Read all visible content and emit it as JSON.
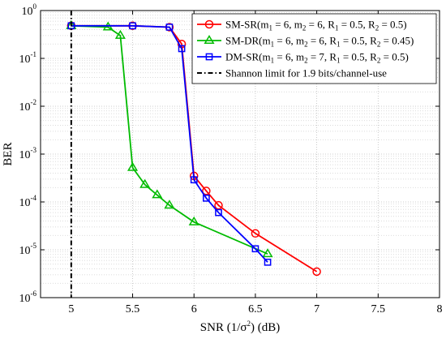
{
  "chart_data": {
    "type": "line",
    "xlabel": "SNR (1/σ²) (dB)",
    "xlabel_parts": {
      "pre": "SNR (1/σ",
      "sup": "2",
      "post": ") (dB)"
    },
    "ylabel": "BER",
    "xlim": [
      4.75,
      8
    ],
    "ylim_exponents": [
      -6,
      0
    ],
    "yscale": "log",
    "grid": true,
    "grid_style": "dotted, with minor log gridlines",
    "legend_position": "top-right",
    "x_ticks": [
      "5",
      "5.5",
      "6",
      "6.5",
      "7",
      "7.5",
      "8"
    ],
    "y_ticks": [
      {
        "base": "10",
        "exp": "0"
      },
      {
        "base": "10",
        "exp": "-1"
      },
      {
        "base": "10",
        "exp": "-2"
      },
      {
        "base": "10",
        "exp": "-3"
      },
      {
        "base": "10",
        "exp": "-4"
      },
      {
        "base": "10",
        "exp": "-5"
      },
      {
        "base": "10",
        "exp": "-6"
      }
    ],
    "series": [
      {
        "name": "SM-SR(m1 = 6, m2 = 6, R1 = 0.5, R2 = 0.5)",
        "color": "#ff0000",
        "marker": "circle",
        "x": [
          5.0,
          5.5,
          5.8,
          5.9,
          6.0,
          6.1,
          6.2,
          6.5,
          7.0
        ],
        "y": [
          0.48,
          0.48,
          0.45,
          0.2,
          0.00035,
          0.00017,
          8.5e-05,
          2.2e-05,
          3.5e-06
        ]
      },
      {
        "name": "SM-DR(m1 = 6, m2 = 6, R1 = 0.5, R2 = 0.45)",
        "color": "#00bb00",
        "marker": "triangle",
        "x": [
          5.0,
          5.3,
          5.4,
          5.5,
          5.6,
          5.7,
          5.8,
          6.0,
          6.6
        ],
        "y": [
          0.48,
          0.45,
          0.3,
          0.00052,
          0.00023,
          0.00014,
          8.5e-05,
          3.8e-05,
          8.2e-06
        ]
      },
      {
        "name": "DM-SR(m1 = 6, m2 = 7, R1 = 0.5, R2 = 0.5)",
        "color": "#0000ff",
        "marker": "square",
        "x": [
          5.0,
          5.5,
          5.8,
          5.9,
          6.0,
          6.1,
          6.2,
          6.5,
          6.6
        ],
        "y": [
          0.48,
          0.48,
          0.45,
          0.16,
          0.00029,
          0.00012,
          6e-05,
          1.05e-05,
          5.5e-06
        ]
      },
      {
        "name": "Shannon limit for 1.9 bits/channel-use",
        "color": "#000000",
        "marker": "none",
        "linestyle": "dash-dot",
        "x": [
          5.0,
          5.0
        ],
        "y": [
          1,
          1e-06
        ]
      }
    ],
    "legend": [
      {
        "parts": [
          [
            "t",
            "SM-SR(m"
          ],
          [
            "sub",
            "1"
          ],
          [
            "t",
            " = 6, m"
          ],
          [
            "sub",
            "2"
          ],
          [
            "t",
            " = 6, R"
          ],
          [
            "sub",
            "1"
          ],
          [
            "t",
            " = 0.5, R"
          ],
          [
            "sub",
            "2"
          ],
          [
            "t",
            " = 0.5)"
          ]
        ]
      },
      {
        "parts": [
          [
            "t",
            "SM-DR(m"
          ],
          [
            "sub",
            "1"
          ],
          [
            "t",
            " = 6, m"
          ],
          [
            "sub",
            "2"
          ],
          [
            "t",
            " = 6, R"
          ],
          [
            "sub",
            "1"
          ],
          [
            "t",
            " = 0.5, R"
          ],
          [
            "sub",
            "2"
          ],
          [
            "t",
            " = 0.45)"
          ]
        ]
      },
      {
        "parts": [
          [
            "t",
            "DM-SR(m"
          ],
          [
            "sub",
            "1"
          ],
          [
            "t",
            " = 6, m"
          ],
          [
            "sub",
            "2"
          ],
          [
            "t",
            " = 7, R"
          ],
          [
            "sub",
            "1"
          ],
          [
            "t",
            " = 0.5, R"
          ],
          [
            "sub",
            "2"
          ],
          [
            "t",
            " = 0.5)"
          ]
        ]
      },
      {
        "parts": [
          [
            "t",
            "Shannon limit for 1.9 bits/channel-use"
          ]
        ]
      }
    ]
  }
}
